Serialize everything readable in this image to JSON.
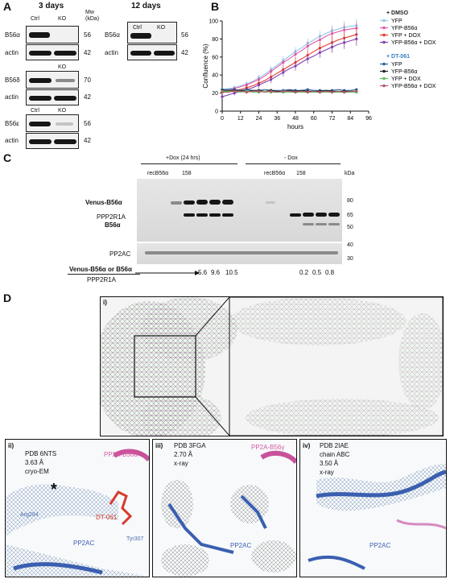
{
  "panels": {
    "A": {
      "label": "A",
      "titles": [
        "3 days",
        "12 days"
      ],
      "mw_header": "Mw (kDa)",
      "ctrl": "Ctrl",
      "ko": "KO",
      "rows": [
        {
          "name": "B56α",
          "mw": "56"
        },
        {
          "name": "actin",
          "mw": "42"
        },
        {
          "name": "B56δ",
          "mw": "70"
        },
        {
          "name": "actin",
          "mw": "42"
        },
        {
          "name": "B56ε",
          "mw": "56"
        },
        {
          "name": "actin",
          "mw": "42"
        }
      ],
      "rows12": [
        {
          "name": "B56α",
          "mw": "56"
        },
        {
          "name": "actin",
          "mw": "42"
        }
      ]
    },
    "B": {
      "label": "B",
      "chart_data": {
        "type": "line",
        "xlabel": "hours",
        "ylabel": "Confluence (%)",
        "xlim": [
          0,
          96
        ],
        "ylim": [
          0,
          100
        ],
        "xticks": [
          0,
          12,
          24,
          36,
          48,
          60,
          72,
          84,
          96
        ],
        "yticks": [
          0,
          20,
          40,
          60,
          80,
          100
        ],
        "x": [
          0,
          4,
          8,
          12,
          16,
          20,
          24,
          28,
          32,
          36,
          40,
          44,
          48,
          52,
          56,
          60,
          64,
          68,
          72,
          76,
          80,
          84,
          88
        ],
        "groups": [
          {
            "title": "+ DMSO",
            "color": "#222222"
          },
          {
            "title": "+ DT-061",
            "color": "#3a7fc4"
          }
        ],
        "series": [
          {
            "name": "YFP",
            "group": 0,
            "color": "#8ecae6",
            "values": [
              24,
              25,
              26,
              28,
              30,
              33,
              37,
              41,
              46,
              51,
              56,
              61,
              66,
              70,
              75,
              79,
              83,
              86,
              89,
              91,
              93,
              94,
              95
            ]
          },
          {
            "name": "YFP-B56α",
            "group": 0,
            "color": "#e05aa8",
            "values": [
              23,
              24,
              25,
              27,
              29,
              32,
              35,
              39,
              44,
              49,
              54,
              58,
              63,
              67,
              72,
              76,
              79,
              83,
              86,
              88,
              90,
              91,
              92
            ]
          },
          {
            "name": "YFP + DOX",
            "group": 0,
            "color": "#e8382b",
            "values": [
              21,
              22,
              23,
              24,
              26,
              28,
              31,
              34,
              38,
              42,
              46,
              50,
              54,
              58,
              62,
              66,
              70,
              73,
              76,
              79,
              81,
              83,
              85
            ]
          },
          {
            "name": "YFP-B56α + DOX",
            "group": 0,
            "color": "#7e3fb0",
            "values": [
              16,
              18,
              20,
              22,
              24,
              26,
              29,
              32,
              35,
              39,
              43,
              47,
              50,
              54,
              58,
              61,
              65,
              68,
              71,
              74,
              76,
              78,
              80
            ]
          },
          {
            "name": "YFP",
            "group": 1,
            "color": "#2f5f9e",
            "values": [
              24,
              24,
              24,
              23,
              24,
              23,
              23,
              24,
              23,
              23,
              23,
              24,
              23,
              23,
              24,
              23,
              23,
              23,
              23,
              24,
              23,
              23,
              24
            ]
          },
          {
            "name": "YFP-B56α",
            "group": 1,
            "color": "#222222",
            "values": [
              23,
              23,
              23,
              23,
              22,
              23,
              23,
              22,
              23,
              22,
              22,
              23,
              22,
              23,
              22,
              22,
              22,
              23,
              22,
              22,
              22,
              22,
              22
            ]
          },
          {
            "name": "YFP + DOX",
            "group": 1,
            "color": "#5cc25c",
            "values": [
              22,
              22,
              22,
              21,
              22,
              21,
              21,
              22,
              21,
              21,
              21,
              21,
              21,
              21,
              21,
              21,
              21,
              21,
              21,
              21,
              21,
              21,
              21
            ]
          },
          {
            "name": "YFP-B56α + DOX",
            "group": 1,
            "color": "#b05a6a",
            "values": [
              21,
              21,
              22,
              22,
              21,
              22,
              22,
              21,
              22,
              21,
              22,
              22,
              21,
              22,
              21,
              22,
              21,
              22,
              21,
              22,
              21,
              22,
              22
            ]
          }
        ]
      }
    },
    "C": {
      "label": "C",
      "dox_plus": "+Dox (24 hrs)",
      "dox_minus": "- Dox",
      "rec": "recB56α",
      "num158": "158",
      "kda": "kDa",
      "markers": [
        "80",
        "65",
        "50",
        "40",
        "30"
      ],
      "bands": [
        "Venus-B56α",
        "PPP2R1A",
        "B56α",
        "PP2AC"
      ],
      "ratio_top": "Venus-B56α or B56α",
      "ratio_bottom": "PPP2R1A",
      "ratios_left": [
        "5.6",
        "9.6",
        "10.5"
      ],
      "ratios_right": [
        "0.2",
        "0.5",
        "0.8"
      ]
    },
    "D": {
      "label": "D",
      "sub_i": "i)",
      "sub": [
        {
          "tag": "ii)",
          "pdb": "PDB 6NTS",
          "res": "3.63 Å",
          "method": "cryo-EM",
          "chain": "PP2A-B56α",
          "pp2ac": "PP2AC",
          "ligand": "DT-061",
          "res1": "Arg294",
          "res2": "Tyr307",
          "star": "*"
        },
        {
          "tag": "iii)",
          "pdb": "PDB 3FGA",
          "res": "2.70 Å",
          "method": "x-ray",
          "chain": "PP2A-B56γ",
          "pp2ac": "PP2AC"
        },
        {
          "tag": "iv)",
          "pdb": "PDB 2IAE",
          "res": "3.50 Å",
          "method": "x-ray",
          "extra": "chain ABC",
          "pp2ac": "PP2AC"
        }
      ]
    }
  }
}
